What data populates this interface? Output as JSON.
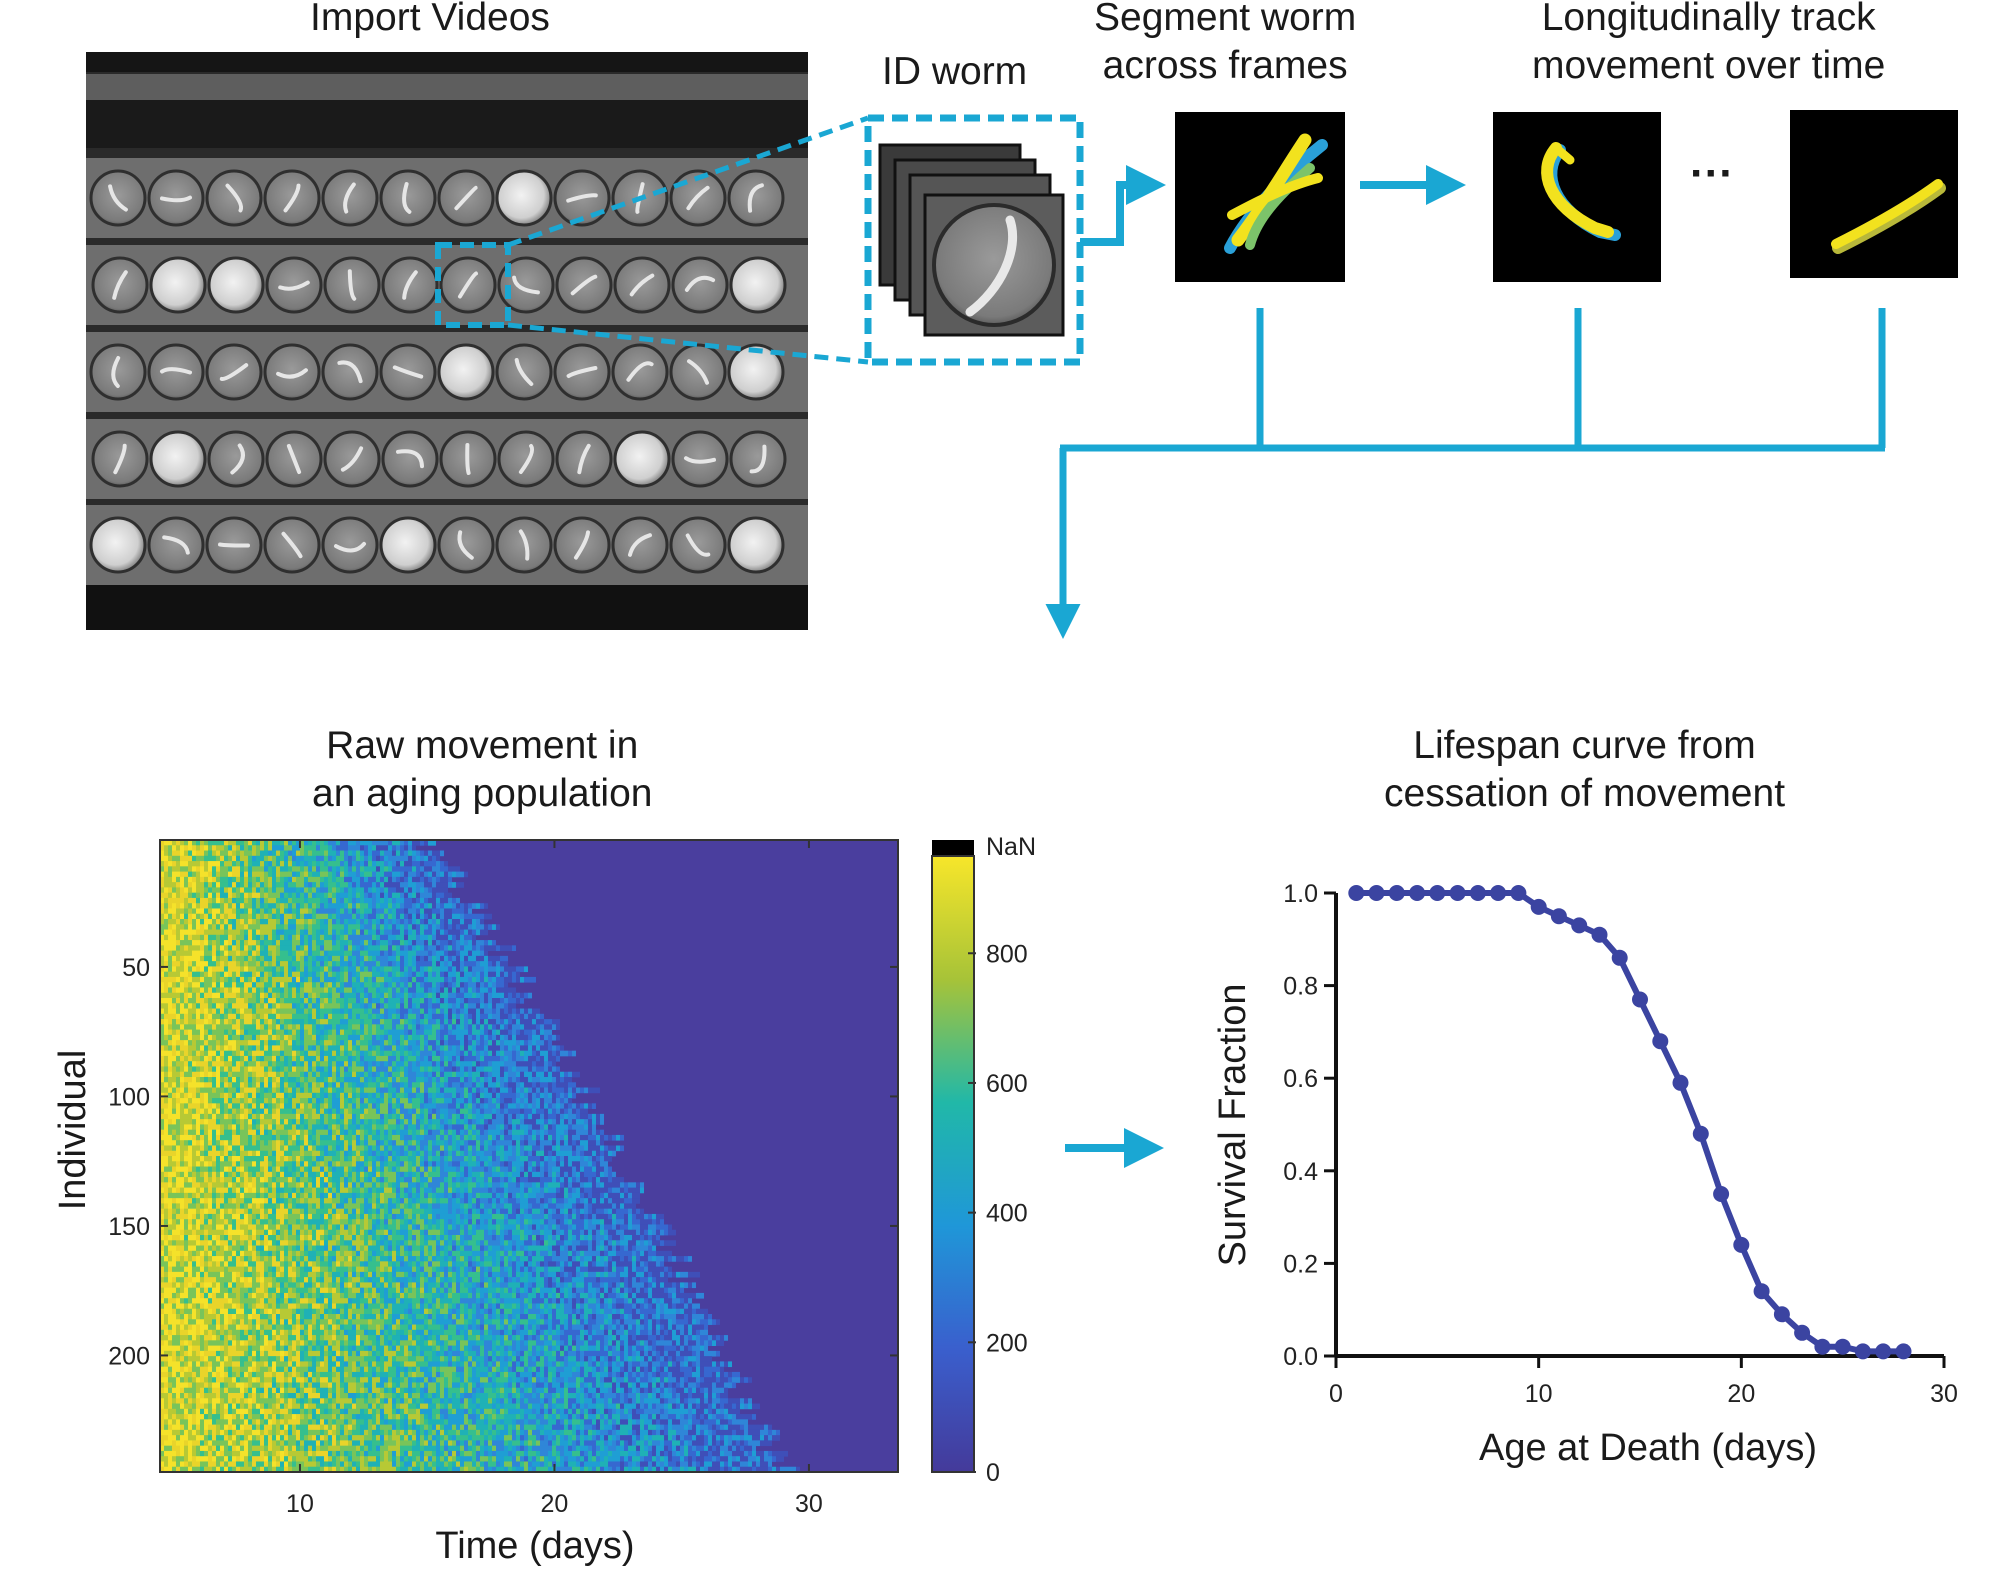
{
  "labels": {
    "import": "Import Videos",
    "id_worm": "ID worm",
    "segment": [
      "Segment worm",
      "across frames"
    ],
    "track": [
      "Longitudinally track",
      "movement over time"
    ],
    "ellipsis": "···",
    "raw": [
      "Raw movement in",
      "an aging population"
    ],
    "lifespan": [
      "Lifespan curve from",
      "cessation of movement"
    ]
  },
  "colors": {
    "arrow": "#1aa7d3",
    "curve": "#3b44a1",
    "heat_bg": "#4a3e9e",
    "well_gray": "#8c8c8c"
  },
  "chart_data": [
    {
      "type": "heatmap",
      "title": "",
      "xlabel": "Time (days)",
      "ylabel": "Individual",
      "x_ticks": [
        10,
        20,
        30
      ],
      "y_ticks": [
        50,
        100,
        150,
        200
      ],
      "xlim": [
        4.5,
        33.5
      ],
      "ylim": [
        1,
        245
      ],
      "colorbar": {
        "ticks": [
          0,
          200,
          400,
          600,
          800
        ],
        "max_label": "NaN",
        "range": [
          0,
          950
        ]
      }
    },
    {
      "type": "line",
      "title": "",
      "xlabel": "Age at Death (days)",
      "ylabel": "Survival Fraction",
      "xlim": [
        0,
        30
      ],
      "ylim": [
        0,
        1.0
      ],
      "x_ticks": [
        0,
        10,
        20,
        30
      ],
      "y_ticks": [
        0.0,
        0.2,
        0.4,
        0.6,
        0.8,
        1.0
      ],
      "x": [
        1,
        2,
        3,
        4,
        5,
        6,
        7,
        8,
        9,
        10,
        11,
        12,
        13,
        14,
        15,
        16,
        17,
        18,
        19,
        20,
        21,
        22,
        23,
        24,
        25,
        26,
        27,
        28
      ],
      "y": [
        1.0,
        1.0,
        1.0,
        1.0,
        1.0,
        1.0,
        1.0,
        1.0,
        1.0,
        0.97,
        0.95,
        0.93,
        0.91,
        0.86,
        0.77,
        0.68,
        0.59,
        0.48,
        0.35,
        0.24,
        0.14,
        0.09,
        0.05,
        0.02,
        0.02,
        0.01,
        0.01,
        0.01
      ]
    }
  ]
}
